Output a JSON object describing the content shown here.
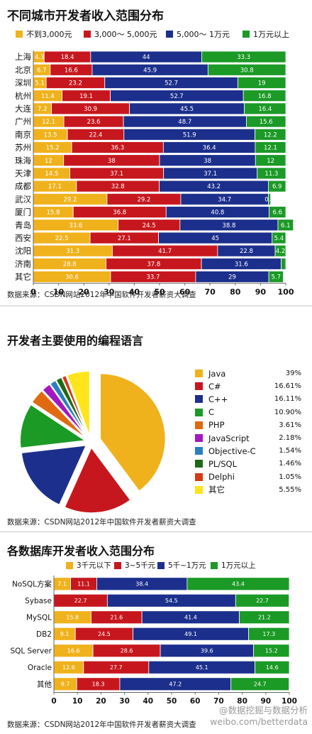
{
  "colors": {
    "c1": "#f0b21c",
    "c2": "#c7171e",
    "c3": "#1c2f8c",
    "c4": "#1b9a26"
  },
  "section1": {
    "title": "不同城市开发者收入范围分布",
    "source": "数据来源：CSDN网站2012年中国软件开发者薪资大调查",
    "legend": [
      "不到3,000元",
      "3,000～ 5,000元",
      "5,000～ 1万元",
      "1万元以上"
    ]
  },
  "section2": {
    "title": "开发者主要使用的编程语言",
    "source": "数据来源：CSDN网站2012年中国软件开发者薪资大调查"
  },
  "section3": {
    "title": "各数据库开发者收入范围分布",
    "source": "数据来源：CSDN网站2012年中国软件开发者薪资大调查",
    "legend": [
      "3千元以下",
      "3~5千元",
      "5千~1万元",
      "1万元以上"
    ]
  },
  "watermark": {
    "line1": "@数据挖掘与数据分析",
    "line2": "weibo.com/betterdata"
  },
  "chart_data": [
    {
      "type": "bar",
      "orientation": "horizontal-stacked",
      "title": "不同城市开发者收入范围分布",
      "categories": [
        "上海",
        "北京",
        "深圳",
        "杭州",
        "大连",
        "广州",
        "南京",
        "苏州",
        "珠海",
        "天津",
        "成都",
        "武汉",
        "厦门",
        "青岛",
        "西安",
        "沈阳",
        "济南",
        "其它"
      ],
      "series": [
        {
          "name": "不到3,000元",
          "color": "#f0b21c",
          "values": [
            4.3,
            6.7,
            5.1,
            11.4,
            7.2,
            12.1,
            13.5,
            15.2,
            12,
            14.5,
            17.1,
            29.2,
            15.8,
            33.6,
            22.5,
            31.3,
            28.8,
            30.6
          ]
        },
        {
          "name": "3,000～ 5,000元",
          "color": "#c7171e",
          "values": [
            18.4,
            16.6,
            23.2,
            19.1,
            30.9,
            23.6,
            22.4,
            36.3,
            38,
            37.1,
            32.8,
            29.2,
            36.8,
            24.5,
            27.1,
            41.7,
            37.8,
            33.7
          ]
        },
        {
          "name": "5,000～ 1万元",
          "color": "#1c2f8c",
          "values": [
            44,
            45.9,
            52.7,
            52.7,
            45.5,
            48.7,
            51.9,
            36.4,
            38,
            37.1,
            43.2,
            34.7,
            40.8,
            38.8,
            45,
            22.8,
            31.6,
            29
          ]
        },
        {
          "name": "1万元以上",
          "color": "#1b9a26",
          "values": [
            33.3,
            30.8,
            19,
            16.8,
            16.4,
            15.6,
            12.2,
            12.1,
            12,
            11.3,
            6.9,
            0.9,
            6.6,
            6.1,
            5.4,
            4.2,
            1.8,
            5.7
          ]
        }
      ],
      "value_labels": [
        [
          "4.3",
          "18.4",
          "44",
          "33.3"
        ],
        [
          "6.7",
          "16.6",
          "45.9",
          "30.8"
        ],
        [
          "5.1",
          "23.2",
          "52.7",
          "19"
        ],
        [
          "11.4",
          "19.1",
          "52.7",
          "16.8"
        ],
        [
          "7.2",
          "30.9",
          "45.5",
          "16.4"
        ],
        [
          "12.1",
          "23.6",
          "48.7",
          "15.6"
        ],
        [
          "13.5",
          "22.4",
          "51.9",
          "12.2"
        ],
        [
          "15.2",
          "36.3",
          "36.4",
          "12.1"
        ],
        [
          "12",
          "38",
          "38",
          "12"
        ],
        [
          "14.5",
          "37.1",
          "37.1",
          "11.3"
        ],
        [
          "17.1",
          "32.8",
          "43.2",
          "6.9"
        ],
        [
          "29.2",
          "29.2",
          "34.7",
          "0.9"
        ],
        [
          "15.8",
          "36.8",
          "40.8",
          "6.6"
        ],
        [
          "33.6",
          "24.5",
          "38.8",
          "6.1"
        ],
        [
          "22.5",
          "27.1",
          "45",
          "5.4"
        ],
        [
          "31.3",
          "41.7",
          "22.8",
          "4.2"
        ],
        [
          "28.8",
          "37.8",
          "31.6",
          ""
        ],
        [
          "30.6",
          "33.7",
          "29",
          "5.7"
        ]
      ],
      "xlim": [
        0,
        100
      ],
      "xticks": [
        "0",
        "10",
        "20",
        "30",
        "40",
        "50",
        "60",
        "70",
        "80",
        "90",
        "100"
      ],
      "legend": "top"
    },
    {
      "type": "pie",
      "title": "开发者主要使用的编程语言",
      "labels": [
        "Java",
        "C#",
        "C++",
        "C",
        "PHP",
        "JavaScript",
        "Objective-C",
        "PL/SQL",
        "Delphi",
        "其它"
      ],
      "values": [
        39,
        16.61,
        16.11,
        10.9,
        3.61,
        2.18,
        1.54,
        1.46,
        1.05,
        5.55
      ],
      "value_labels": [
        "39%",
        "16.61%",
        "16.11%",
        "10.90%",
        "3.61%",
        "2.18%",
        "1.54%",
        "1.46%",
        "1.05%",
        "5.55%"
      ],
      "colors": [
        "#f0b21c",
        "#c7171e",
        "#1c2f8c",
        "#1b9a26",
        "#e06a12",
        "#a318c0",
        "#2a7fc0",
        "#1f6a16",
        "#d43a14",
        "#ffe51a"
      ],
      "legend": "right"
    },
    {
      "type": "bar",
      "orientation": "horizontal-stacked",
      "title": "各数据库开发者收入范围分布",
      "categories": [
        "NoSQL方案",
        "Sybase",
        "MySQL",
        "DB2",
        "SQL Server",
        "Oracle",
        "其他"
      ],
      "series": [
        {
          "name": "3千元以下",
          "color": "#f0b21c",
          "values": [
            7.1,
            0,
            15.8,
            9.1,
            16.6,
            12.6,
            9.7
          ]
        },
        {
          "name": "3~5千元",
          "color": "#c7171e",
          "values": [
            11.1,
            22.7,
            21.6,
            24.5,
            28.6,
            27.7,
            18.3
          ]
        },
        {
          "name": "5千~1万元",
          "color": "#1c2f8c",
          "values": [
            38.4,
            54.5,
            41.4,
            49.1,
            39.6,
            45.1,
            47.2
          ]
        },
        {
          "name": "1万元以上",
          "color": "#1b9a26",
          "values": [
            43.4,
            22.7,
            21.2,
            17.3,
            15.2,
            14.6,
            24.7
          ]
        }
      ],
      "value_labels": [
        [
          "7.1",
          "11.1",
          "38.4",
          "43.4"
        ],
        [
          "",
          "22.7",
          "54.5",
          "22.7"
        ],
        [
          "15.8",
          "21.6",
          "41.4",
          "21.2"
        ],
        [
          "9.1",
          "24.5",
          "49.1",
          "17.3"
        ],
        [
          "16.6",
          "28.6",
          "39.6",
          "15.2"
        ],
        [
          "12.6",
          "27.7",
          "45.1",
          "14.6"
        ],
        [
          "9.7",
          "18.3",
          "47.2",
          "24.7"
        ]
      ],
      "xlim": [
        0,
        100
      ],
      "xticks": [
        "0",
        "10",
        "20",
        "30",
        "40",
        "50",
        "60",
        "70",
        "80",
        "90",
        "100"
      ],
      "legend": "top"
    }
  ]
}
